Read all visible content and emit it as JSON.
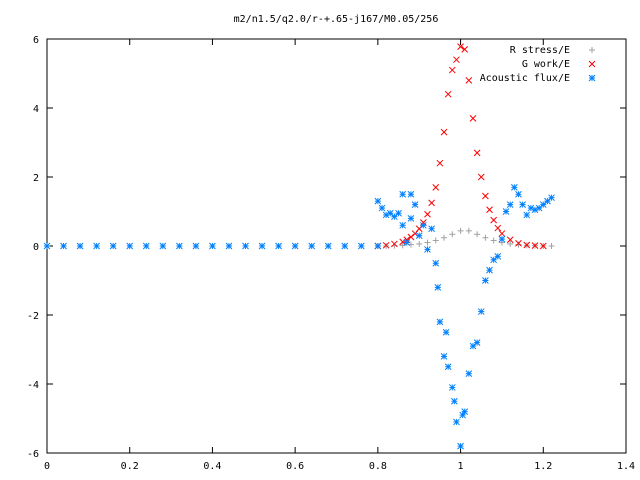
{
  "chart_data": {
    "type": "scatter",
    "title": "m2/n1.5/q2.0/r-+.65-j167/M0.05/256",
    "xlabel": "",
    "ylabel": "",
    "xlim": [
      0,
      1.4
    ],
    "ylim": [
      -6,
      6
    ],
    "x_ticks": [
      "0",
      "0.2",
      "0.4",
      "0.6",
      "0.8",
      "1",
      "1.2",
      "1.4"
    ],
    "y_ticks": [
      "6",
      "4",
      "2",
      "0",
      "-2",
      "-4",
      "-6"
    ],
    "grid": false,
    "legend_position": "top-right",
    "series": [
      {
        "name": "R stress/E",
        "marker": "plus",
        "color": "#a0a0a0",
        "x": [
          0.8,
          0.82,
          0.84,
          0.86,
          0.88,
          0.9,
          0.92,
          0.94,
          0.96,
          0.98,
          1.0,
          1.02,
          1.04,
          1.06,
          1.08,
          1.1,
          1.12,
          1.14,
          1.16,
          1.18,
          1.2,
          1.22
        ],
        "y": [
          0.0,
          0.0,
          0.01,
          0.02,
          0.04,
          0.06,
          0.1,
          0.16,
          0.24,
          0.34,
          0.44,
          0.44,
          0.34,
          0.24,
          0.16,
          0.1,
          0.06,
          0.04,
          0.02,
          0.01,
          0.0,
          0.0
        ]
      },
      {
        "name": "G work/E",
        "marker": "cross",
        "color": "#ff0000",
        "x": [
          0.8,
          0.82,
          0.84,
          0.86,
          0.87,
          0.88,
          0.89,
          0.9,
          0.91,
          0.92,
          0.93,
          0.94,
          0.95,
          0.96,
          0.97,
          0.98,
          0.99,
          1.0,
          1.01,
          1.02,
          1.03,
          1.04,
          1.05,
          1.06,
          1.07,
          1.08,
          1.09,
          1.1,
          1.12,
          1.14,
          1.16,
          1.18,
          1.2
        ],
        "y": [
          0.0,
          0.02,
          0.06,
          0.12,
          0.18,
          0.26,
          0.36,
          0.5,
          0.68,
          0.92,
          1.25,
          1.7,
          2.4,
          3.3,
          4.4,
          5.1,
          5.4,
          5.78,
          5.7,
          4.8,
          3.7,
          2.7,
          2.0,
          1.45,
          1.05,
          0.75,
          0.52,
          0.36,
          0.18,
          0.08,
          0.03,
          0.01,
          0.0
        ]
      },
      {
        "name": "Acoustic flux/E",
        "marker": "star",
        "color": "#0080ff",
        "x": [
          0.0,
          0.04,
          0.08,
          0.12,
          0.16,
          0.2,
          0.24,
          0.28,
          0.32,
          0.36,
          0.4,
          0.44,
          0.48,
          0.52,
          0.56,
          0.6,
          0.64,
          0.68,
          0.72,
          0.76,
          0.8,
          0.8,
          0.81,
          0.82,
          0.83,
          0.84,
          0.85,
          0.86,
          0.86,
          0.87,
          0.88,
          0.88,
          0.89,
          0.9,
          0.91,
          0.92,
          0.93,
          0.94,
          0.945,
          0.95,
          0.96,
          0.965,
          0.97,
          0.98,
          0.985,
          0.99,
          1.0,
          1.005,
          1.01,
          1.02,
          1.03,
          1.04,
          1.05,
          1.06,
          1.07,
          1.08,
          1.09,
          1.1,
          1.11,
          1.12,
          1.13,
          1.14,
          1.15,
          1.16,
          1.17,
          1.18,
          1.19,
          1.2,
          1.21,
          1.22
        ],
        "y": [
          0.0,
          0.0,
          0.0,
          0.0,
          0.0,
          0.0,
          0.0,
          0.0,
          0.0,
          0.0,
          0.0,
          0.0,
          0.0,
          0.0,
          0.0,
          0.0,
          0.0,
          0.0,
          0.0,
          0.0,
          0.0,
          1.3,
          1.1,
          0.9,
          0.95,
          0.85,
          0.95,
          1.5,
          0.6,
          0.1,
          1.5,
          0.8,
          1.2,
          0.3,
          0.6,
          -0.1,
          0.5,
          -0.5,
          -1.2,
          -2.2,
          -3.2,
          -2.5,
          -3.5,
          -4.1,
          -4.5,
          -5.1,
          -5.8,
          -4.9,
          -4.8,
          -3.7,
          -2.9,
          -2.8,
          -1.9,
          -1.0,
          -0.7,
          -0.4,
          -0.3,
          0.2,
          1.0,
          1.2,
          1.7,
          1.5,
          1.2,
          0.9,
          1.1,
          1.05,
          1.1,
          1.2,
          1.3,
          1.4
        ]
      }
    ]
  }
}
